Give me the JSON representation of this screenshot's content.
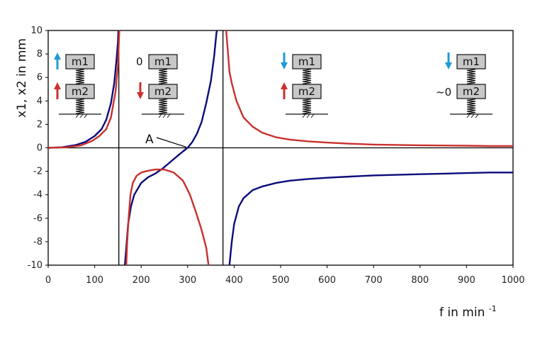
{
  "chart_data": {
    "type": "line",
    "xlabel": "f in min",
    "xlabel_sup": "-1",
    "ylabel": "x1, x2  in mm",
    "xlim": [
      0,
      1000
    ],
    "ylim": [
      -10,
      10
    ],
    "x_ticks": [
      "0",
      "100",
      "200",
      "300",
      "400",
      "500",
      "600",
      "700",
      "800",
      "900",
      "1000"
    ],
    "y_ticks": [
      "10",
      "8",
      "6",
      "4",
      "2",
      "0",
      "-2",
      "-4",
      "-6",
      "-8",
      "-10"
    ],
    "resonance_lines": [
      152,
      376
    ],
    "grid": false,
    "series": [
      {
        "color": "#0b0b7a",
        "segments": [
          [
            [
              0,
              0
            ],
            [
              30,
              0.05
            ],
            [
              60,
              0.25
            ],
            [
              80,
              0.5
            ],
            [
              100,
              1.0
            ],
            [
              115,
              1.6
            ],
            [
              125,
              2.4
            ],
            [
              135,
              3.8
            ],
            [
              142,
              5.5
            ],
            [
              147,
              7.5
            ],
            [
              150,
              9.0
            ],
            [
              151,
              10
            ]
          ],
          [
            [
              165,
              -10
            ],
            [
              168,
              -8.5
            ],
            [
              172,
              -6.5
            ],
            [
              178,
              -5
            ],
            [
              185,
              -4
            ],
            [
              200,
              -3
            ],
            [
              215,
              -2.5
            ],
            [
              230,
              -2.2
            ],
            [
              245,
              -1.8
            ],
            [
              260,
              -1.3
            ],
            [
              275,
              -0.8
            ],
            [
              290,
              -0.3
            ],
            [
              300,
              0
            ],
            [
              310,
              0.5
            ],
            [
              320,
              1.2
            ],
            [
              330,
              2.2
            ],
            [
              340,
              3.8
            ],
            [
              350,
              5.7
            ],
            [
              357,
              7.8
            ],
            [
              362,
              9.8
            ],
            [
              363,
              10
            ]
          ],
          [
            [
              390,
              -10
            ],
            [
              395,
              -8
            ],
            [
              400,
              -6.5
            ],
            [
              410,
              -5
            ],
            [
              420,
              -4.3
            ],
            [
              440,
              -3.6
            ],
            [
              460,
              -3.3
            ],
            [
              490,
              -3.0
            ],
            [
              520,
              -2.8
            ],
            [
              560,
              -2.65
            ],
            [
              600,
              -2.55
            ],
            [
              650,
              -2.45
            ],
            [
              700,
              -2.35
            ],
            [
              750,
              -2.3
            ],
            [
              800,
              -2.25
            ],
            [
              850,
              -2.2
            ],
            [
              900,
              -2.15
            ],
            [
              950,
              -2.1
            ],
            [
              1000,
              -2.1
            ]
          ]
        ]
      },
      {
        "color": "#c9302c",
        "segments": [
          [
            [
              0,
              0
            ],
            [
              40,
              0.05
            ],
            [
              70,
              0.2
            ],
            [
              95,
              0.6
            ],
            [
              110,
              1.0
            ],
            [
              125,
              1.6
            ],
            [
              135,
              2.6
            ],
            [
              145,
              4.8
            ],
            [
              150,
              7
            ],
            [
              153,
              10
            ]
          ],
          [
            [
              168,
              -10
            ],
            [
              170,
              -8
            ],
            [
              173,
              -6
            ],
            [
              177,
              -4
            ],
            [
              182,
              -3
            ],
            [
              190,
              -2.4
            ],
            [
              200,
              -2.1
            ],
            [
              215,
              -1.95
            ],
            [
              230,
              -1.85
            ],
            [
              250,
              -1.85
            ],
            [
              270,
              -2.1
            ],
            [
              290,
              -2.8
            ],
            [
              305,
              -4
            ],
            [
              318,
              -5.5
            ],
            [
              330,
              -7
            ],
            [
              340,
              -8.5
            ],
            [
              345,
              -10
            ]
          ],
          [
            [
              383,
              10
            ],
            [
              386,
              8.5
            ],
            [
              390,
              6.5
            ],
            [
              395,
              5.5
            ],
            [
              405,
              4
            ],
            [
              420,
              2.6
            ],
            [
              440,
              1.8
            ],
            [
              460,
              1.3
            ],
            [
              490,
              0.9
            ],
            [
              520,
              0.7
            ],
            [
              560,
              0.55
            ],
            [
              600,
              0.45
            ],
            [
              650,
              0.35
            ],
            [
              700,
              0.28
            ],
            [
              750,
              0.25
            ],
            [
              800,
              0.22
            ],
            [
              850,
              0.2
            ],
            [
              900,
              0.18
            ],
            [
              950,
              0.15
            ],
            [
              1000,
              0.15
            ]
          ]
        ]
      }
    ],
    "annotations": [
      {
        "text": "A",
        "x": 300,
        "y": 0
      }
    ]
  },
  "insets": [
    {
      "top_label": "m1",
      "bottom_label": "m2",
      "top_arrow": "up",
      "top_arrow_color": "#1e9bd7",
      "bottom_arrow": "up",
      "bottom_arrow_color": "#c9302c",
      "top_text": "",
      "bottom_text": ""
    },
    {
      "top_label": "m1",
      "bottom_label": "m2",
      "top_arrow": "none",
      "top_arrow_color": "",
      "bottom_arrow": "down",
      "bottom_arrow_color": "#c9302c",
      "top_text": "0",
      "bottom_text": ""
    },
    {
      "top_label": "m1",
      "bottom_label": "m2",
      "top_arrow": "down",
      "top_arrow_color": "#1e9bd7",
      "bottom_arrow": "up",
      "bottom_arrow_color": "#c9302c",
      "top_text": "",
      "bottom_text": ""
    },
    {
      "top_label": "m1",
      "bottom_label": "m2",
      "top_arrow": "down",
      "top_arrow_color": "#1e9bd7",
      "bottom_arrow": "none",
      "bottom_arrow_color": "",
      "top_text": "",
      "bottom_text": "~0"
    }
  ]
}
